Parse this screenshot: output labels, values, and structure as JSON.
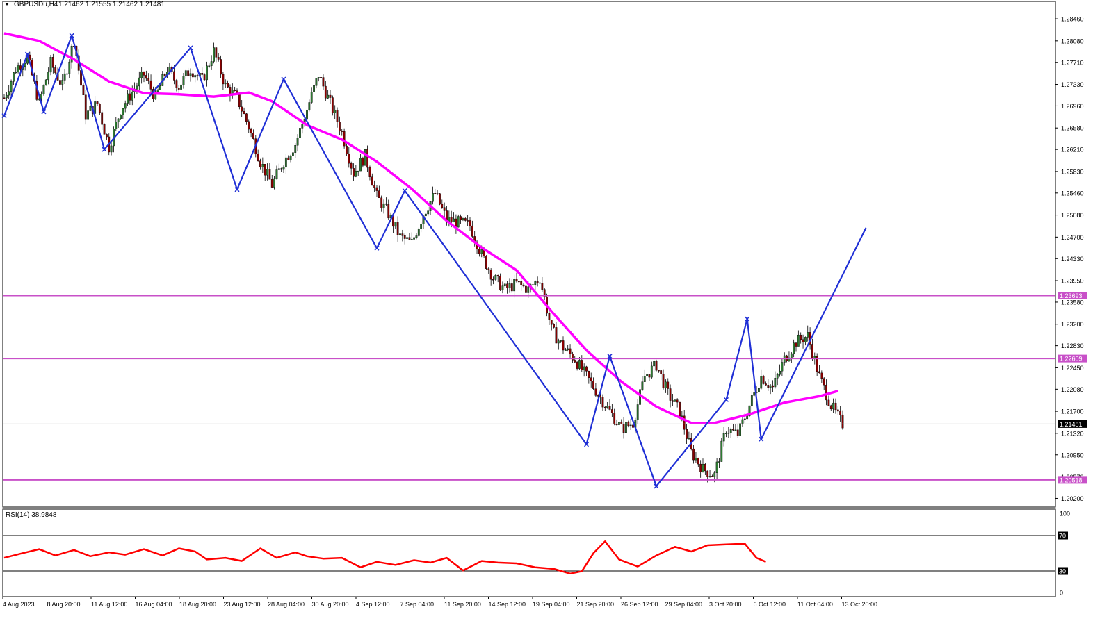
{
  "header": {
    "symbol": "GBPUSDu,H4",
    "ohlc": "1.21462 1.21555 1.21462 1.21481",
    "rsi_label": "RSI(14) 38.9848"
  },
  "colors": {
    "background": "#ffffff",
    "grid_line": "#000000",
    "bull_candle": "#2e7d32",
    "bear_candle": "#8b0000",
    "moving_average": "#ff00ff",
    "zigzag": "#1f2fd6",
    "hline": "#c850c8",
    "rsi_line": "#ff0000",
    "price_tag_bg": "#000000",
    "price_tag_text": "#ffffff"
  },
  "chart_data": [
    {
      "type": "candlestick",
      "title": "GBPUSDu,H4",
      "ylim": [
        1.2005,
        1.2876
      ],
      "y_ticks": [
        "1.28460",
        "1.28080",
        "1.27710",
        "1.27330",
        "1.26960",
        "1.26580",
        "1.26210",
        "1.25830",
        "1.25460",
        "1.25080",
        "1.24700",
        "1.24330",
        "1.23950",
        "1.23580",
        "1.23200",
        "1.22830",
        "1.22450",
        "1.22080",
        "1.21700",
        "1.21320",
        "1.20950",
        "1.20570",
        "1.20200"
      ],
      "x_ticks": [
        "4 Aug 2023",
        "8 Aug 20:00",
        "11 Aug 12:00",
        "16 Aug 04:00",
        "18 Aug 20:00",
        "23 Aug 12:00",
        "28 Aug 04:00",
        "30 Aug 20:00",
        "4 Sep 12:00",
        "7 Sep 04:00",
        "11 Sep 20:00",
        "14 Sep 12:00",
        "19 Sep 04:00",
        "21 Sep 20:00",
        "26 Sep 12:00",
        "29 Sep 04:00",
        "3 Oct 20:00",
        "6 Oct 12:00",
        "11 Oct 04:00",
        "13 Oct 20:00"
      ],
      "current_price": "1.21481",
      "horizontal_levels": [
        {
          "label": "1.23693",
          "value": 1.23693
        },
        {
          "label": "1.22609",
          "value": 1.22609
        },
        {
          "label": "1.20518",
          "value": 1.20518
        }
      ],
      "close_path": [
        [
          0,
          1.271
        ],
        [
          5,
          1.276
        ],
        [
          10,
          1.278
        ],
        [
          15,
          1.27
        ],
        [
          20,
          1.277
        ],
        [
          25,
          1.273
        ],
        [
          30,
          1.281
        ],
        [
          35,
          1.268
        ],
        [
          40,
          1.27
        ],
        [
          45,
          1.2625
        ],
        [
          50,
          1.269
        ],
        [
          55,
          1.272
        ],
        [
          60,
          1.275
        ],
        [
          65,
          1.271
        ],
        [
          70,
          1.276
        ],
        [
          75,
          1.273
        ],
        [
          80,
          1.276
        ],
        [
          85,
          1.274
        ],
        [
          90,
          1.279
        ],
        [
          95,
          1.273
        ],
        [
          100,
          1.271
        ],
        [
          105,
          1.266
        ],
        [
          110,
          1.26
        ],
        [
          115,
          1.256
        ],
        [
          120,
          1.26
        ],
        [
          125,
          1.263
        ],
        [
          130,
          1.269
        ],
        [
          135,
          1.275
        ],
        [
          140,
          1.27
        ],
        [
          145,
          1.265
        ],
        [
          150,
          1.258
        ],
        [
          155,
          1.261
        ],
        [
          160,
          1.254
        ],
        [
          165,
          1.251
        ],
        [
          170,
          1.247
        ],
        [
          175,
          1.246
        ],
        [
          180,
          1.251
        ],
        [
          185,
          1.2545
        ],
        [
          190,
          1.25
        ],
        [
          195,
          1.2495
        ],
        [
          200,
          1.249
        ],
        [
          205,
          1.244
        ],
        [
          210,
          1.24
        ],
        [
          215,
          1.238
        ],
        [
          220,
          1.239
        ],
        [
          225,
          1.238
        ],
        [
          230,
          1.24
        ],
        [
          235,
          1.231
        ],
        [
          240,
          1.228
        ],
        [
          245,
          1.226
        ],
        [
          250,
          1.223
        ],
        [
          255,
          1.22
        ],
        [
          260,
          1.217
        ],
        [
          265,
          1.214
        ],
        [
          270,
          1.215
        ],
        [
          275,
          1.223
        ],
        [
          280,
          1.225
        ],
        [
          285,
          1.22
        ],
        [
          290,
          1.217
        ],
        [
          295,
          1.21
        ],
        [
          300,
          1.207
        ],
        [
          305,
          1.206
        ],
        [
          310,
          1.214
        ],
        [
          315,
          1.213
        ],
        [
          320,
          1.218
        ],
        [
          325,
          1.223
        ],
        [
          330,
          1.221
        ],
        [
          335,
          1.226
        ],
        [
          340,
          1.229
        ],
        [
          345,
          1.23
        ],
        [
          350,
          1.223
        ],
        [
          355,
          1.218
        ],
        [
          360,
          1.2148
        ]
      ],
      "series": [
        {
          "name": "Moving Average",
          "points": [
            [
              0,
              1.2821
            ],
            [
              15,
              1.2808
            ],
            [
              30,
              1.2776
            ],
            [
              45,
              1.2738
            ],
            [
              60,
              1.2718
            ],
            [
              75,
              1.2716
            ],
            [
              90,
              1.2712
            ],
            [
              105,
              1.2719
            ],
            [
              115,
              1.2704
            ],
            [
              130,
              1.2663
            ],
            [
              145,
              1.2638
            ],
            [
              160,
              1.26
            ],
            [
              175,
              1.2553
            ],
            [
              190,
              1.2498
            ],
            [
              205,
              1.2452
            ],
            [
              220,
              1.2413
            ],
            [
              235,
              1.2342
            ],
            [
              250,
              1.2275
            ],
            [
              265,
              1.2221
            ],
            [
              280,
              1.2178
            ],
            [
              295,
              1.215
            ],
            [
              305,
              1.215
            ],
            [
              320,
              1.2165
            ],
            [
              335,
              1.2185
            ],
            [
              350,
              1.2196
            ],
            [
              358,
              1.2205
            ]
          ]
        },
        {
          "name": "ZigZag",
          "points": [
            [
              0,
              1.2679
            ],
            [
              10,
              1.2785
            ],
            [
              17,
              1.2686
            ],
            [
              29,
              1.2817
            ],
            [
              43,
              1.2621
            ],
            [
              80,
              1.2796
            ],
            [
              100,
              1.2552
            ],
            [
              120,
              1.2742
            ],
            [
              160,
              1.2451
            ],
            [
              172,
              1.255
            ],
            [
              250,
              1.2113
            ],
            [
              260,
              1.2265
            ],
            [
              280,
              1.2041
            ],
            [
              310,
              1.219
            ],
            [
              319,
              1.2329
            ],
            [
              325,
              1.2122
            ],
            [
              370,
              1.2486
            ]
          ]
        }
      ]
    },
    {
      "type": "line",
      "title": "RSI(14) 38.9848",
      "ylim": [
        0,
        100
      ],
      "y_ticks": [
        "100",
        "70",
        "30",
        "0"
      ],
      "levels": [
        70,
        30
      ],
      "series": [
        {
          "name": "RSI(14)",
          "points": [
            [
              0,
              44
            ],
            [
              8,
              50
            ],
            [
              15,
              55
            ],
            [
              22,
              47
            ],
            [
              30,
              54
            ],
            [
              37,
              46
            ],
            [
              45,
              51
            ],
            [
              52,
              48
            ],
            [
              60,
              55
            ],
            [
              68,
              47
            ],
            [
              75,
              56
            ],
            [
              82,
              52
            ],
            [
              87,
              42
            ],
            [
              95,
              44
            ],
            [
              102,
              40
            ],
            [
              110,
              56
            ],
            [
              117,
              44
            ],
            [
              125,
              51
            ],
            [
              130,
              46
            ],
            [
              137,
              43
            ],
            [
              145,
              44
            ],
            [
              153,
              32
            ],
            [
              160,
              39
            ],
            [
              168,
              35
            ],
            [
              176,
              41
            ],
            [
              183,
              38
            ],
            [
              190,
              44
            ],
            [
              197,
              28
            ],
            [
              205,
              40
            ],
            [
              212,
              38
            ],
            [
              220,
              37
            ],
            [
              228,
              32
            ],
            [
              236,
              30
            ],
            [
              243,
              24
            ],
            [
              248,
              27
            ],
            [
              253,
              50
            ],
            [
              258,
              65
            ],
            [
              264,
              42
            ],
            [
              272,
              33
            ],
            [
              280,
              47
            ],
            [
              288,
              58
            ],
            [
              295,
              52
            ],
            [
              302,
              60
            ],
            [
              310,
              61
            ],
            [
              318,
              62
            ],
            [
              323,
              44
            ],
            [
              327,
              39
            ]
          ]
        }
      ]
    }
  ]
}
